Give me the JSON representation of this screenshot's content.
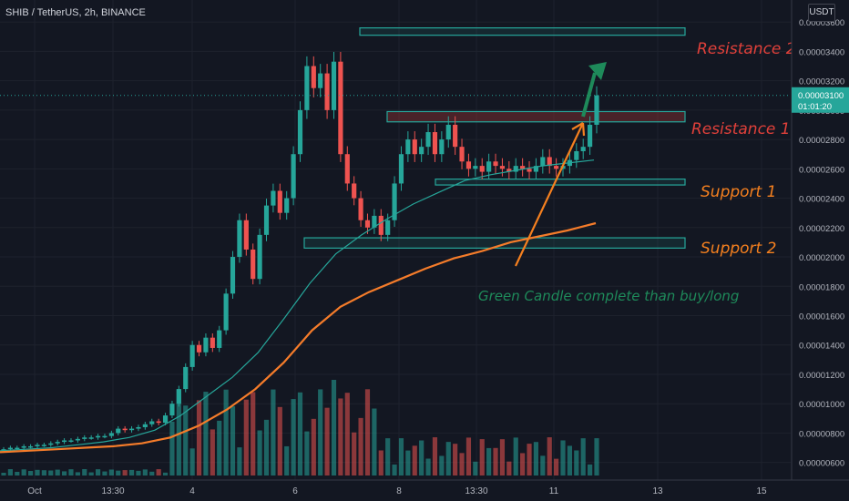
{
  "header": {
    "symbol_text": "SHIB / TetherUS, 2h, BINANCE"
  },
  "price_axis": {
    "unit_label": "USDT",
    "tick_labels": [
      "0.00003600",
      "0.00003400",
      "0.00003200",
      "0.00003000",
      "0.00002800",
      "0.00002600",
      "0.00002400",
      "0.00002200",
      "0.00002000",
      "0.00001800",
      "0.00001600",
      "0.00001400",
      "0.00001200",
      "0.00001000",
      "0.00000800",
      "0.00000600"
    ],
    "current_price": "0.00003100",
    "countdown": "01:01:20"
  },
  "time_axis": {
    "tick_labels": [
      "Oct",
      "13:30",
      "4",
      "6",
      "8",
      "13:30",
      "11",
      "13",
      "15"
    ]
  },
  "colors": {
    "bull": "#26a69a",
    "bear": "#ef5350",
    "ma_fast": "#26a69a",
    "ma_slow": "#f57c2a",
    "annotation_red": "#e0403a",
    "annotation_orange": "#f5801f",
    "annotation_green": "#1e8a5a"
  },
  "annotations": {
    "resistance_2": "Resistance 2",
    "resistance_1": "Resistance 1",
    "support_1": "Support 1",
    "support_2": "Support 2",
    "note": "Green Candle complete than buy/long"
  },
  "chart_data": {
    "type": "candlestick",
    "symbol": "SHIB / TetherUS",
    "interval": "2h",
    "exchange": "BINANCE",
    "y_axis": {
      "min": 4.8e-06,
      "max": 3.75e-05,
      "grid": true,
      "position": "right"
    },
    "zones": [
      {
        "label": "Resistance 2",
        "low": 3.51e-05,
        "high": 3.56e-05
      },
      {
        "label": "Resistance 1",
        "low": 2.92e-05,
        "high": 2.99e-05
      },
      {
        "label": "Support 1",
        "low": 2.49e-05,
        "high": 2.53e-05
      },
      {
        "label": "Support 2",
        "low": 2.06e-05,
        "high": 2.13e-05
      }
    ],
    "candles_ohlc_close": [
      6.9e-06,
      7e-06,
      7e-06,
      7.1e-06,
      7.1e-06,
      7.2e-06,
      7.2e-06,
      7.3e-06,
      7.4e-06,
      7.5e-06,
      7.5e-06,
      7.6e-06,
      7.7e-06,
      7.7e-06,
      7.8e-06,
      7.8e-06,
      8e-06,
      8.3e-06,
      8.2e-06,
      8.3e-06,
      8.4e-06,
      8.6e-06,
      8.8e-06,
      8.7e-06,
      9.2e-06,
      1e-05,
      1.1e-05,
      1.25e-05,
      1.4e-05,
      1.35e-05,
      1.45e-05,
      1.38e-05,
      1.5e-05,
      1.75e-05,
      2e-05,
      2.25e-05,
      2.05e-05,
      1.85e-05,
      2.15e-05,
      2.35e-05,
      2.45e-05,
      2.3e-05,
      2.4e-05,
      2.7e-05,
      3e-05,
      3.3e-05,
      3.15e-05,
      3.25e-05,
      3e-05,
      3.33e-05,
      2.7e-05,
      2.5e-05,
      2.4e-05,
      2.25e-05,
      2.2e-05,
      2.28e-05,
      2.15e-05,
      2.25e-05,
      2.5e-05,
      2.7e-05,
      2.8e-05,
      2.7e-05,
      2.75e-05,
      2.85e-05,
      2.7e-05,
      2.8e-05,
      2.9e-05,
      2.75e-05,
      2.65e-05,
      2.6e-05,
      2.62e-05,
      2.58e-05,
      2.65e-05,
      2.62e-05,
      2.6e-05,
      2.58e-05,
      2.62e-05,
      2.6e-05,
      2.58e-05,
      2.62e-05,
      2.68e-05,
      2.62e-05,
      2.6e-05,
      2.62e-05,
      2.66e-05,
      2.72e-05,
      2.75e-05,
      2.9e-05,
      3.1e-05
    ],
    "ma_fast": [
      6.8e-06,
      6.9e-06,
      7e-06,
      7.2e-06,
      7.4e-06,
      7.7e-06,
      8.2e-06,
      9.2e-06,
      1.05e-05,
      1.18e-05,
      1.35e-05,
      1.58e-05,
      1.82e-05,
      2.02e-05,
      2.15e-05,
      2.26e-05,
      2.36e-05,
      2.44e-05,
      2.52e-05,
      2.56e-05,
      2.59e-05,
      2.62e-05,
      2.64e-05,
      2.66e-05
    ],
    "ma_slow": [
      6.7e-06,
      6.8e-06,
      6.9e-06,
      7e-06,
      7.1e-06,
      7.3e-06,
      7.7e-06,
      8.5e-06,
      9.6e-06,
      1.1e-05,
      1.28e-05,
      1.5e-05,
      1.66e-05,
      1.76e-05,
      1.84e-05,
      1.92e-05,
      1.99e-05,
      2.04e-05,
      2.1e-05,
      2.14e-05,
      2.18e-05,
      2.23e-05
    ]
  }
}
